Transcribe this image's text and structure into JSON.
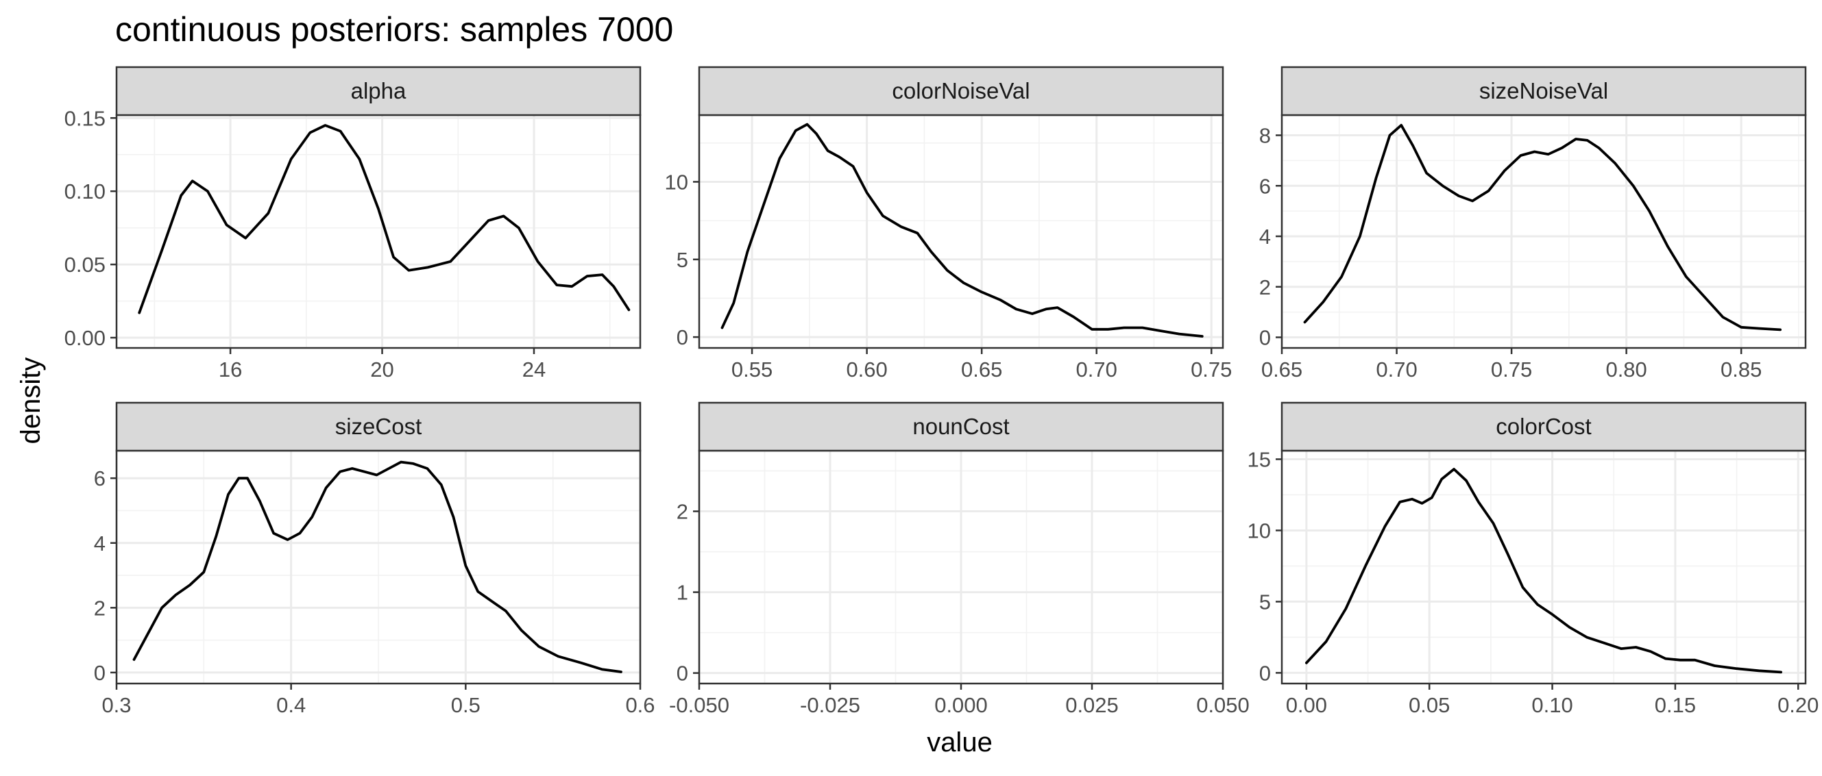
{
  "figure": {
    "title": "continuous posteriors: samples 7000",
    "xlabel": "value",
    "ylabel": "density"
  },
  "colors": {
    "line": "#000000",
    "strip": "#d9d9d9",
    "grid": "#ebebeb",
    "border": "#333333"
  },
  "chart_data": [
    {
      "type": "line",
      "facet": "alpha",
      "xlim": [
        13.0,
        26.8
      ],
      "ylim": [
        -0.007,
        0.152
      ],
      "xticks": [
        16,
        20,
        24
      ],
      "xtick_labels": [
        "16",
        "20",
        "24"
      ],
      "yticks": [
        0.0,
        0.05,
        0.1,
        0.15
      ],
      "ytick_labels": [
        "0.00",
        "0.05",
        "0.10",
        "0.15"
      ],
      "grid": true,
      "series": [
        {
          "x": [
            13.6,
            14.2,
            14.7,
            15.0,
            15.4,
            15.9,
            16.4,
            17.0,
            17.6,
            18.1,
            18.5,
            18.9,
            19.4,
            19.9,
            20.3,
            20.7,
            21.2,
            21.8,
            22.3,
            22.8,
            23.2,
            23.6,
            24.1,
            24.6,
            25.0,
            25.4,
            25.8,
            26.1,
            26.5
          ],
          "y": [
            0.017,
            0.06,
            0.097,
            0.107,
            0.1,
            0.077,
            0.068,
            0.085,
            0.122,
            0.14,
            0.145,
            0.141,
            0.122,
            0.088,
            0.055,
            0.046,
            0.048,
            0.052,
            0.066,
            0.08,
            0.083,
            0.075,
            0.052,
            0.036,
            0.035,
            0.042,
            0.043,
            0.035,
            0.019
          ]
        }
      ]
    },
    {
      "type": "line",
      "facet": "colorNoiseVal",
      "xlim": [
        0.527,
        0.755
      ],
      "ylim": [
        -0.7,
        14.3
      ],
      "xticks": [
        0.55,
        0.6,
        0.65,
        0.7,
        0.75
      ],
      "xtick_labels": [
        "0.55",
        "0.60",
        "0.65",
        "0.70",
        "0.75"
      ],
      "yticks": [
        0,
        5,
        10
      ],
      "ytick_labels": [
        "0",
        "5",
        "10"
      ],
      "grid": true,
      "series": [
        {
          "x": [
            0.537,
            0.542,
            0.548,
            0.555,
            0.562,
            0.569,
            0.574,
            0.578,
            0.583,
            0.588,
            0.594,
            0.6,
            0.607,
            0.615,
            0.622,
            0.628,
            0.635,
            0.642,
            0.65,
            0.658,
            0.665,
            0.672,
            0.678,
            0.683,
            0.69,
            0.698,
            0.705,
            0.712,
            0.72,
            0.728,
            0.736,
            0.746
          ],
          "y": [
            0.6,
            2.2,
            5.5,
            8.5,
            11.5,
            13.3,
            13.7,
            13.1,
            12.0,
            11.6,
            11.0,
            9.3,
            7.8,
            7.1,
            6.7,
            5.5,
            4.3,
            3.5,
            2.9,
            2.4,
            1.8,
            1.5,
            1.8,
            1.9,
            1.3,
            0.5,
            0.5,
            0.6,
            0.6,
            0.4,
            0.2,
            0.05
          ]
        }
      ]
    },
    {
      "type": "line",
      "facet": "sizeNoiseVal",
      "xlim": [
        0.65,
        0.878
      ],
      "ylim": [
        -0.42,
        8.8
      ],
      "xticks": [
        0.65,
        0.7,
        0.75,
        0.8,
        0.85
      ],
      "xtick_labels": [
        "0.65",
        "0.70",
        "0.75",
        "0.80",
        "0.85"
      ],
      "yticks": [
        0,
        2,
        4,
        6,
        8
      ],
      "ytick_labels": [
        "0",
        "2",
        "4",
        "6",
        "8"
      ],
      "grid": true,
      "series": [
        {
          "x": [
            0.66,
            0.668,
            0.676,
            0.684,
            0.691,
            0.697,
            0.702,
            0.707,
            0.713,
            0.72,
            0.727,
            0.733,
            0.74,
            0.747,
            0.754,
            0.76,
            0.766,
            0.772,
            0.778,
            0.783,
            0.788,
            0.795,
            0.803,
            0.81,
            0.818,
            0.826,
            0.834,
            0.842,
            0.85,
            0.858,
            0.867
          ],
          "y": [
            0.6,
            1.4,
            2.4,
            4.0,
            6.3,
            8.0,
            8.4,
            7.6,
            6.5,
            6.0,
            5.6,
            5.4,
            5.8,
            6.6,
            7.2,
            7.35,
            7.25,
            7.5,
            7.85,
            7.8,
            7.5,
            6.9,
            6.0,
            5.0,
            3.6,
            2.4,
            1.6,
            0.8,
            0.4,
            0.35,
            0.3
          ]
        }
      ]
    },
    {
      "type": "line",
      "facet": "sizeCost",
      "xlim": [
        0.3,
        0.6
      ],
      "ylim": [
        -0.34,
        6.85
      ],
      "xticks": [
        0.3,
        0.4,
        0.5,
        0.6
      ],
      "xtick_labels": [
        "0.3",
        "0.4",
        "0.5",
        "0.6"
      ],
      "yticks": [
        0,
        2,
        4,
        6
      ],
      "ytick_labels": [
        "0",
        "2",
        "4",
        "6"
      ],
      "grid": true,
      "series": [
        {
          "x": [
            0.31,
            0.318,
            0.326,
            0.334,
            0.342,
            0.35,
            0.357,
            0.364,
            0.37,
            0.375,
            0.382,
            0.39,
            0.398,
            0.405,
            0.412,
            0.42,
            0.428,
            0.435,
            0.442,
            0.449,
            0.456,
            0.463,
            0.47,
            0.478,
            0.486,
            0.493,
            0.5,
            0.507,
            0.515,
            0.523,
            0.532,
            0.542,
            0.553,
            0.566,
            0.578,
            0.589
          ],
          "y": [
            0.4,
            1.2,
            2.0,
            2.4,
            2.7,
            3.1,
            4.2,
            5.5,
            6.0,
            6.0,
            5.3,
            4.3,
            4.1,
            4.3,
            4.8,
            5.7,
            6.2,
            6.3,
            6.2,
            6.1,
            6.3,
            6.5,
            6.45,
            6.3,
            5.8,
            4.8,
            3.3,
            2.5,
            2.2,
            1.9,
            1.3,
            0.8,
            0.5,
            0.3,
            0.1,
            0.02
          ]
        }
      ]
    },
    {
      "type": "line",
      "facet": "nounCost",
      "xlim": [
        -0.05,
        0.05
      ],
      "ylim": [
        -0.13,
        2.75
      ],
      "xticks": [
        -0.05,
        -0.025,
        0.0,
        0.025,
        0.05
      ],
      "xtick_labels": [
        "-0.050",
        "-0.025",
        "0.000",
        "0.025",
        "0.050"
      ],
      "yticks": [
        0,
        1,
        2
      ],
      "ytick_labels": [
        "0",
        "1",
        "2"
      ],
      "grid": true,
      "series": []
    },
    {
      "type": "line",
      "facet": "colorCost",
      "xlim": [
        -0.01,
        0.203
      ],
      "ylim": [
        -0.75,
        15.6
      ],
      "xticks": [
        0.0,
        0.05,
        0.1,
        0.15,
        0.2
      ],
      "xtick_labels": [
        "0.00",
        "0.05",
        "0.10",
        "0.15",
        "0.20"
      ],
      "yticks": [
        0,
        5,
        10,
        15
      ],
      "ytick_labels": [
        "0",
        "5",
        "10",
        "15"
      ],
      "grid": true,
      "series": [
        {
          "x": [
            0.0,
            0.008,
            0.016,
            0.024,
            0.032,
            0.038,
            0.043,
            0.047,
            0.051,
            0.055,
            0.06,
            0.065,
            0.07,
            0.076,
            0.082,
            0.088,
            0.094,
            0.1,
            0.107,
            0.114,
            0.121,
            0.128,
            0.134,
            0.14,
            0.146,
            0.152,
            0.158,
            0.166,
            0.175,
            0.184,
            0.193
          ],
          "y": [
            0.7,
            2.2,
            4.5,
            7.5,
            10.3,
            12.0,
            12.2,
            11.9,
            12.3,
            13.6,
            14.3,
            13.5,
            12.0,
            10.5,
            8.3,
            6.0,
            4.8,
            4.1,
            3.2,
            2.5,
            2.1,
            1.7,
            1.8,
            1.5,
            1.0,
            0.9,
            0.9,
            0.5,
            0.3,
            0.15,
            0.05
          ]
        }
      ]
    }
  ]
}
